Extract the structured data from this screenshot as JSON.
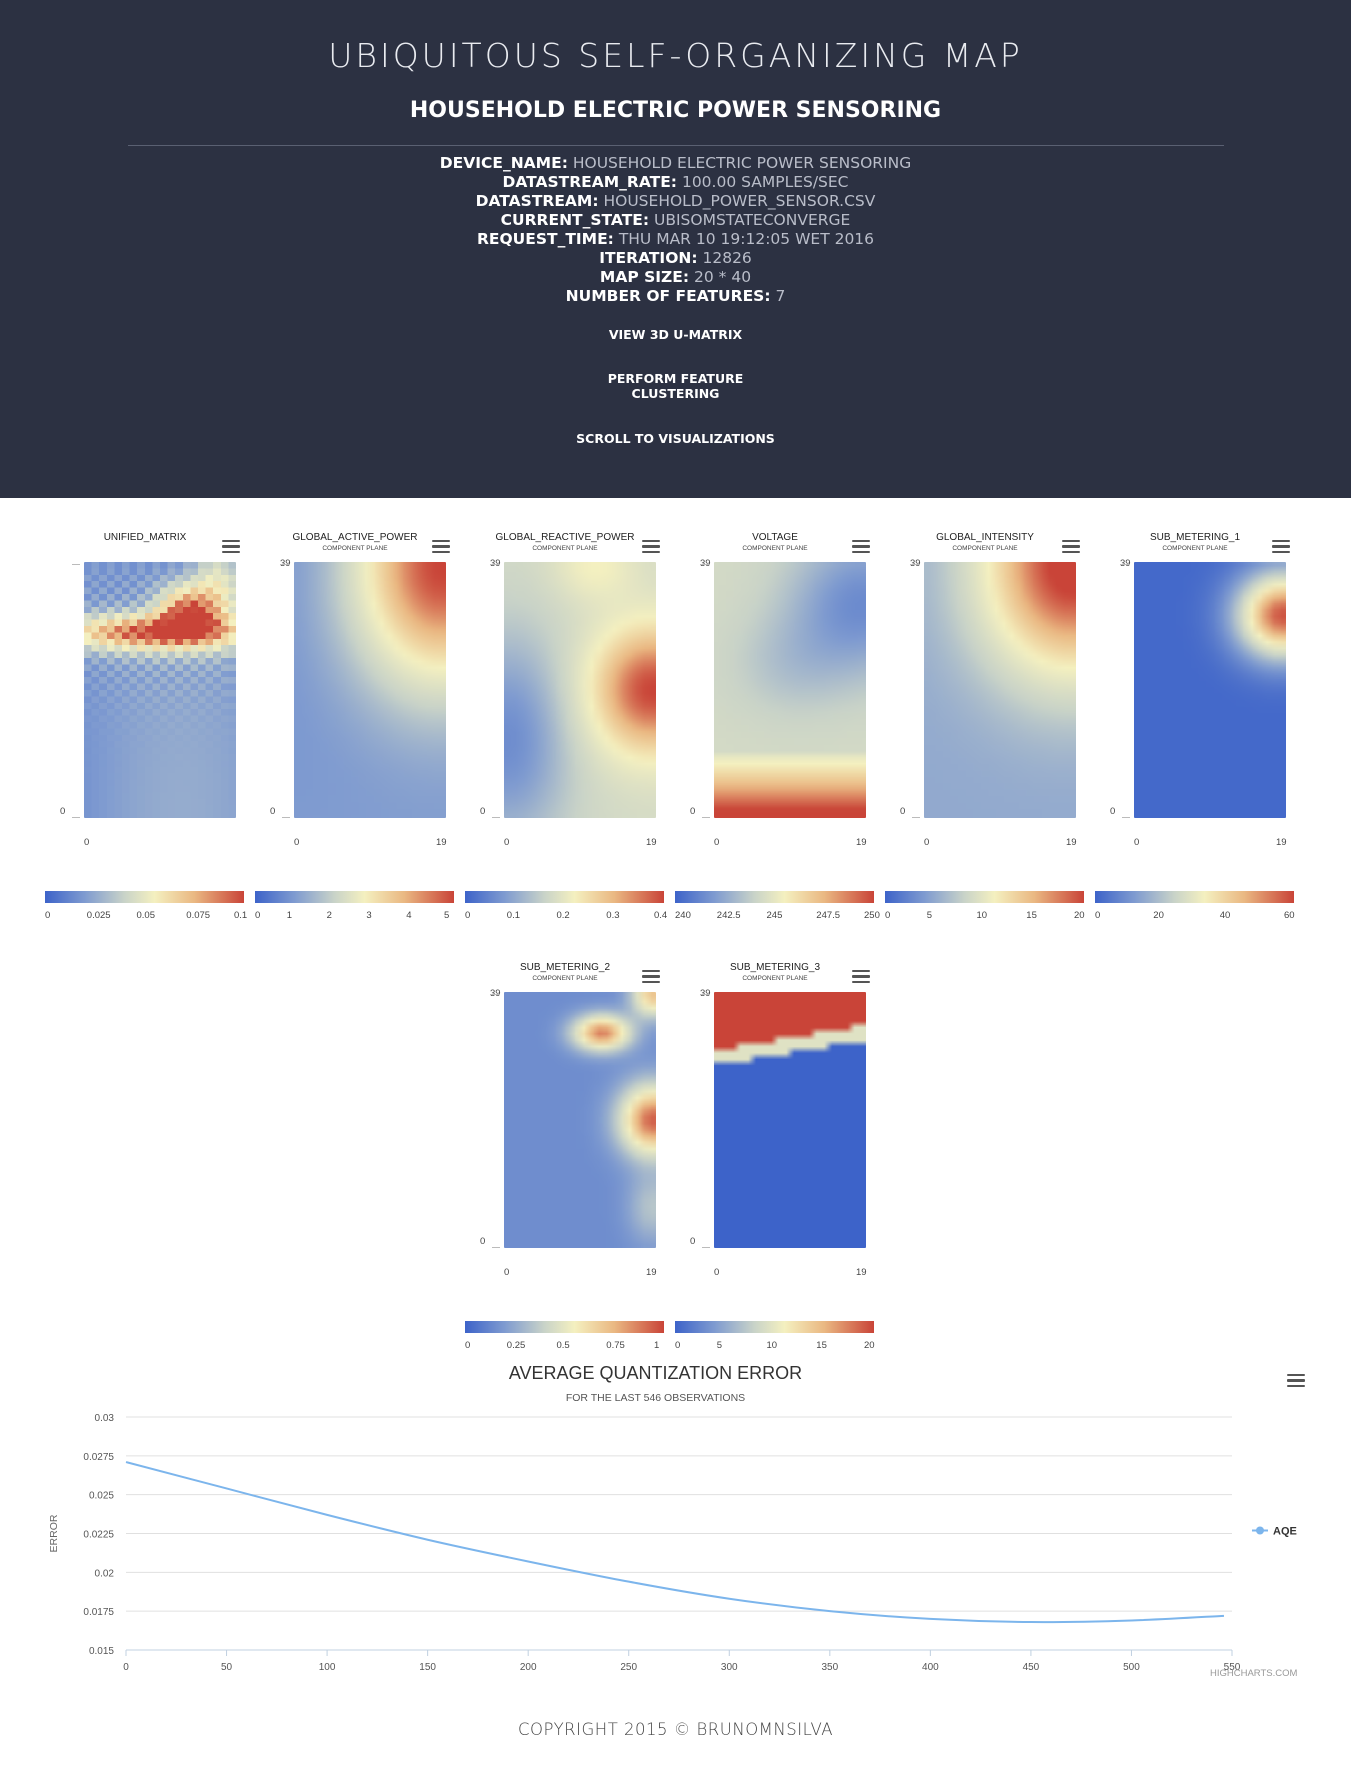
{
  "header": {
    "app_title": "UBIQUITOUS SELF-ORGANIZING MAP",
    "page_title": "HOUSEHOLD ELECTRIC POWER SENSORING",
    "info": [
      {
        "key": "DEVICE_NAME:",
        "value": "HOUSEHOLD ELECTRIC POWER SENSORING"
      },
      {
        "key": "DATASTREAM_RATE:",
        "value": "100.00 SAMPLES/SEC"
      },
      {
        "key": "DATASTREAM:",
        "value": "HOUSEHOLD_POWER_SENSOR.CSV"
      },
      {
        "key": "CURRENT_STATE:",
        "value": "UBISOMSTATECONVERGE"
      },
      {
        "key": "REQUEST_TIME:",
        "value": "THU MAR 10 19:12:05 WET 2016"
      },
      {
        "key": "ITERATION:",
        "value": "12826"
      },
      {
        "key": "MAP SIZE:",
        "value": "20 * 40"
      },
      {
        "key": "NUMBER OF FEATURES:",
        "value": "7"
      }
    ],
    "buttons": {
      "view_umatrix": "VIEW 3D U-MATRIX",
      "feature_clustering": "PERFORM FEATURE CLUSTERING",
      "scroll_to_viz": "SCROLL TO VISUALIZATIONS"
    }
  },
  "maps": [
    {
      "title": "UNIFIED_MATRIX",
      "subtitle": "",
      "y_top": "",
      "y_bottom": "0",
      "x_left": "0",
      "x_right": "",
      "legend": [
        "0",
        "0.025",
        "0.05",
        "0.075",
        "0.1"
      ]
    },
    {
      "title": "GLOBAL_ACTIVE_POWER",
      "subtitle": "COMPONENT PLANE",
      "y_top": "39",
      "y_bottom": "0",
      "x_left": "0",
      "x_right": "19",
      "legend": [
        "0",
        "1",
        "2",
        "3",
        "4",
        "5"
      ]
    },
    {
      "title": "GLOBAL_REACTIVE_POWER",
      "subtitle": "COMPONENT PLANE",
      "y_top": "39",
      "y_bottom": "0",
      "x_left": "0",
      "x_right": "19",
      "legend": [
        "0",
        "0.1",
        "0.2",
        "0.3",
        "0.4"
      ]
    },
    {
      "title": "VOLTAGE",
      "subtitle": "COMPONENT PLANE",
      "y_top": "39",
      "y_bottom": "0",
      "x_left": "0",
      "x_right": "19",
      "legend": [
        "240",
        "242.5",
        "245",
        "247.5",
        "250"
      ]
    },
    {
      "title": "GLOBAL_INTENSITY",
      "subtitle": "COMPONENT PLANE",
      "y_top": "39",
      "y_bottom": "0",
      "x_left": "0",
      "x_right": "19",
      "legend": [
        "0",
        "5",
        "10",
        "15",
        "20"
      ]
    },
    {
      "title": "SUB_METERING_1",
      "subtitle": "COMPONENT PLANE",
      "y_top": "39",
      "y_bottom": "0",
      "x_left": "0",
      "x_right": "19",
      "legend": [
        "0",
        "20",
        "40",
        "60"
      ]
    },
    {
      "title": "SUB_METERING_2",
      "subtitle": "COMPONENT PLANE",
      "y_top": "39",
      "y_bottom": "0",
      "x_left": "0",
      "x_right": "19",
      "legend": [
        "0",
        "0.25",
        "0.5",
        "0.75",
        "1"
      ]
    },
    {
      "title": "SUB_METERING_3",
      "subtitle": "COMPONENT PLANE",
      "y_top": "39",
      "y_bottom": "0",
      "x_left": "0",
      "x_right": "19",
      "legend": [
        "0",
        "5",
        "10",
        "15",
        "20"
      ]
    }
  ],
  "chart_data": {
    "type": "line",
    "title": "AVERAGE QUANTIZATION ERROR",
    "subtitle": "FOR THE LAST 546 OBSERVATIONS",
    "ylabel": "ERROR",
    "xlabel": "",
    "xlim": [
      0,
      550
    ],
    "ylim": [
      0.015,
      0.03
    ],
    "x_ticks": [
      "0",
      "50",
      "100",
      "150",
      "200",
      "250",
      "300",
      "350",
      "400",
      "450",
      "500",
      "550"
    ],
    "y_ticks": [
      "0.015",
      "0.0175",
      "0.02",
      "0.0225",
      "0.025",
      "0.0275",
      "0.03"
    ],
    "legend": "right",
    "series": [
      {
        "name": "AQE",
        "color": "#7cb5ec",
        "x": [
          0,
          50,
          100,
          150,
          200,
          250,
          300,
          350,
          400,
          450,
          500,
          546
        ],
        "values": [
          0.0271,
          0.0254,
          0.0237,
          0.0221,
          0.0207,
          0.0194,
          0.0183,
          0.0175,
          0.017,
          0.0168,
          0.0169,
          0.0172
        ]
      }
    ],
    "credits": "HIGHCHARTS.COM"
  },
  "footer": "COPYRIGHT 2015 © BRUNOMNSILVA"
}
